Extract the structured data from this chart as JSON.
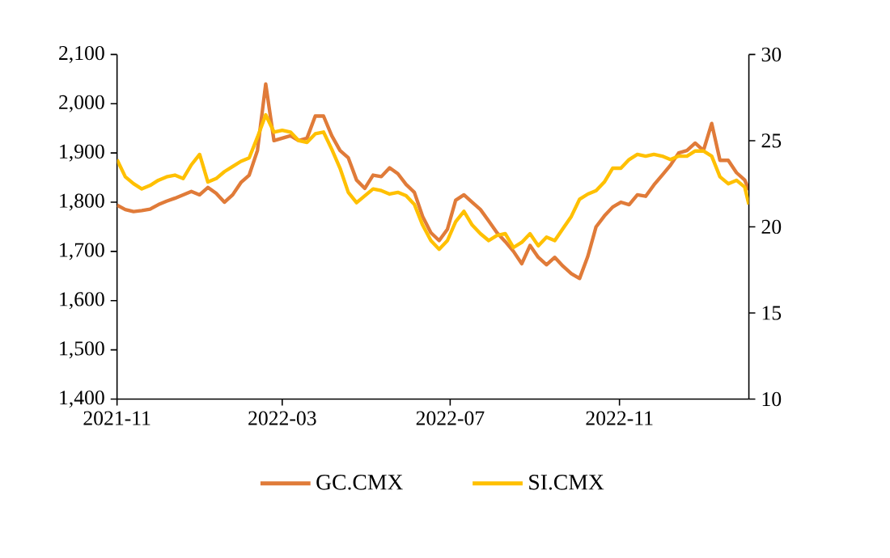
{
  "chart_data": {
    "type": "line",
    "xlim": [
      "2021-11-01",
      "2023-02-03"
    ],
    "xticks": [
      "2021-11",
      "2022-03",
      "2022-07",
      "2022-11"
    ],
    "ylim": [
      1400,
      2100
    ],
    "yticks": [
      {
        "value": 1400,
        "label": "1,400"
      },
      {
        "value": 1500,
        "label": "1,500"
      },
      {
        "value": 1600,
        "label": "1,600"
      },
      {
        "value": 1700,
        "label": "1,700"
      },
      {
        "value": 1800,
        "label": "1,800"
      },
      {
        "value": 1900,
        "label": "1,900"
      },
      {
        "value": 2000,
        "label": "2,000"
      },
      {
        "value": 2100,
        "label": "2,100"
      }
    ],
    "y2lim": [
      10,
      30
    ],
    "y2ticks": [
      10,
      15,
      20,
      25,
      30
    ],
    "legend": "bottom",
    "grid": false,
    "marker": "none",
    "line_style": "solid",
    "x": [
      "2021-11-01",
      "2021-11-07",
      "2021-11-13",
      "2021-11-19",
      "2021-11-25",
      "2021-12-01",
      "2021-12-07",
      "2021-12-13",
      "2021-12-19",
      "2021-12-25",
      "2021-12-31",
      "2022-01-06",
      "2022-01-12",
      "2022-01-18",
      "2022-01-24",
      "2022-01-30",
      "2022-02-05",
      "2022-02-11",
      "2022-02-17",
      "2022-02-23",
      "2022-03-01",
      "2022-03-07",
      "2022-03-13",
      "2022-03-19",
      "2022-03-25",
      "2022-03-31",
      "2022-04-06",
      "2022-04-12",
      "2022-04-18",
      "2022-04-24",
      "2022-04-30",
      "2022-05-06",
      "2022-05-12",
      "2022-05-18",
      "2022-05-24",
      "2022-05-30",
      "2022-06-05",
      "2022-06-11",
      "2022-06-17",
      "2022-06-23",
      "2022-06-29",
      "2022-07-05",
      "2022-07-11",
      "2022-07-17",
      "2022-07-23",
      "2022-07-29",
      "2022-08-04",
      "2022-08-10",
      "2022-08-16",
      "2022-08-22",
      "2022-08-28",
      "2022-09-03",
      "2022-09-09",
      "2022-09-15",
      "2022-09-21",
      "2022-09-27",
      "2022-10-03",
      "2022-10-09",
      "2022-10-15",
      "2022-10-21",
      "2022-10-27",
      "2022-11-02",
      "2022-11-08",
      "2022-11-14",
      "2022-11-20",
      "2022-11-26",
      "2022-12-02",
      "2022-12-08",
      "2022-12-14",
      "2022-12-20",
      "2022-12-26",
      "2023-01-01",
      "2023-01-07",
      "2023-01-13",
      "2023-01-19",
      "2023-01-25",
      "2023-01-31",
      "2023-02-03"
    ],
    "series": [
      {
        "name": "GC.CMX",
        "color": "#e07b39",
        "values": [
          1794,
          1785,
          1781,
          1783,
          1786,
          1795,
          1802,
          1808,
          1815,
          1822,
          1815,
          1830,
          1818,
          1800,
          1815,
          1840,
          1855,
          1905,
          2040,
          1925,
          1930,
          1935,
          1925,
          1930,
          1975,
          1975,
          1935,
          1905,
          1890,
          1845,
          1828,
          1855,
          1852,
          1870,
          1858,
          1836,
          1820,
          1771,
          1738,
          1722,
          1745,
          1804,
          1815,
          1800,
          1785,
          1762,
          1738,
          1720,
          1700,
          1675,
          1712,
          1688,
          1673,
          1688,
          1670,
          1655,
          1645,
          1690,
          1750,
          1772,
          1790,
          1800,
          1795,
          1815,
          1812,
          1835,
          1855,
          1875,
          1900,
          1905,
          1920,
          1905,
          1960,
          1885,
          1885,
          1860,
          1845,
          1825
        ]
      },
      {
        "name": "SI.CMX",
        "color": "#ffc000",
        "axis": "y2",
        "values": [
          23.9,
          22.9,
          22.5,
          22.2,
          22.4,
          22.7,
          22.9,
          23.0,
          22.8,
          23.6,
          24.2,
          22.6,
          22.8,
          23.2,
          23.5,
          23.8,
          24.0,
          25.2,
          26.5,
          25.5,
          25.6,
          25.5,
          25.0,
          24.9,
          25.4,
          25.5,
          24.5,
          23.4,
          22.0,
          21.4,
          21.8,
          22.2,
          22.1,
          21.9,
          22.0,
          21.8,
          21.3,
          20.1,
          19.2,
          18.7,
          19.2,
          20.3,
          20.9,
          20.1,
          19.6,
          19.2,
          19.5,
          19.6,
          18.8,
          19.1,
          19.6,
          18.9,
          19.4,
          19.2,
          19.9,
          20.6,
          21.6,
          21.9,
          22.1,
          22.6,
          23.4,
          23.4,
          23.9,
          24.2,
          24.1,
          24.2,
          24.1,
          23.9,
          24.1,
          24.1,
          24.4,
          24.4,
          24.1,
          22.9,
          22.5,
          22.7,
          22.3,
          21.3
        ]
      }
    ]
  }
}
